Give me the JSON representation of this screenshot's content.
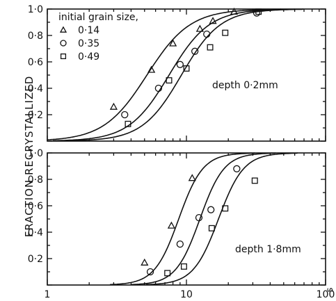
{
  "chart_data": [
    {
      "type": "scatter",
      "panel": "top",
      "annotation": "depth 0·2mm",
      "xscale": "log",
      "xlim": [
        1,
        100
      ],
      "ylim": [
        0,
        1.0
      ],
      "yticks": [
        "0",
        "0·2",
        "0·4",
        "0·6",
        "0·8",
        "1·0"
      ],
      "grid": false,
      "legend_title": "initial grain size,",
      "legend_position": "top-left",
      "series": [
        {
          "name": "0·14",
          "marker": "triangle",
          "points": [
            [
              3.0,
              0.26
            ],
            [
              5.6,
              0.54
            ],
            [
              8.0,
              0.74
            ],
            [
              12.5,
              0.85
            ],
            [
              15.5,
              0.91
            ],
            [
              22.0,
              0.98
            ]
          ],
          "curve": {
            "t50": 5.2,
            "k": 2.8
          }
        },
        {
          "name": "0·35",
          "marker": "circle",
          "points": [
            [
              3.6,
              0.2
            ],
            [
              6.3,
              0.4
            ],
            [
              9.0,
              0.58
            ],
            [
              11.5,
              0.68
            ],
            [
              14.0,
              0.81
            ],
            [
              32.0,
              0.97
            ]
          ],
          "curve": {
            "t50": 7.5,
            "k": 3.0
          }
        },
        {
          "name": "0·49",
          "marker": "square",
          "points": [
            [
              3.8,
              0.13
            ],
            [
              7.5,
              0.46
            ],
            [
              10.0,
              0.55
            ],
            [
              14.8,
              0.71
            ],
            [
              19.0,
              0.82
            ],
            [
              33.0,
              0.98
            ]
          ],
          "curve": {
            "t50": 9.2,
            "k": 3.1
          }
        }
      ]
    },
    {
      "type": "scatter",
      "panel": "bottom",
      "annotation": "depth 1·8mm",
      "xscale": "log",
      "xlim": [
        1,
        100
      ],
      "ylim": [
        0,
        1.0
      ],
      "yticks": [
        "0",
        "0·2",
        "0·4",
        "0·6",
        "0·8",
        "1·0"
      ],
      "xticks": [
        "1",
        "10",
        "100"
      ],
      "grid": false,
      "series": [
        {
          "name": "0·14",
          "marker": "triangle",
          "points": [
            [
              5.0,
              0.17
            ],
            [
              7.8,
              0.45
            ],
            [
              11.0,
              0.81
            ]
          ],
          "curve": {
            "t50": 8.8,
            "k": 5.0
          }
        },
        {
          "name": "0·35",
          "marker": "circle",
          "points": [
            [
              5.5,
              0.1
            ],
            [
              9.0,
              0.31
            ],
            [
              12.3,
              0.51
            ],
            [
              15.0,
              0.57
            ],
            [
              23.0,
              0.88
            ]
          ],
          "curve": {
            "t50": 12.5,
            "k": 5.0
          }
        },
        {
          "name": "0·49",
          "marker": "square",
          "points": [
            [
              7.3,
              0.09
            ],
            [
              9.6,
              0.14
            ],
            [
              15.2,
              0.43
            ],
            [
              19.0,
              0.58
            ],
            [
              31.0,
              0.79
            ]
          ],
          "curve": {
            "t50": 17.0,
            "k": 4.8
          }
        }
      ]
    }
  ],
  "ylabel": "FRACTION RECRYSTALLIZED",
  "x_unit_fragment": "s",
  "colors": {
    "ink": "#111111",
    "background": "#ffffff"
  }
}
